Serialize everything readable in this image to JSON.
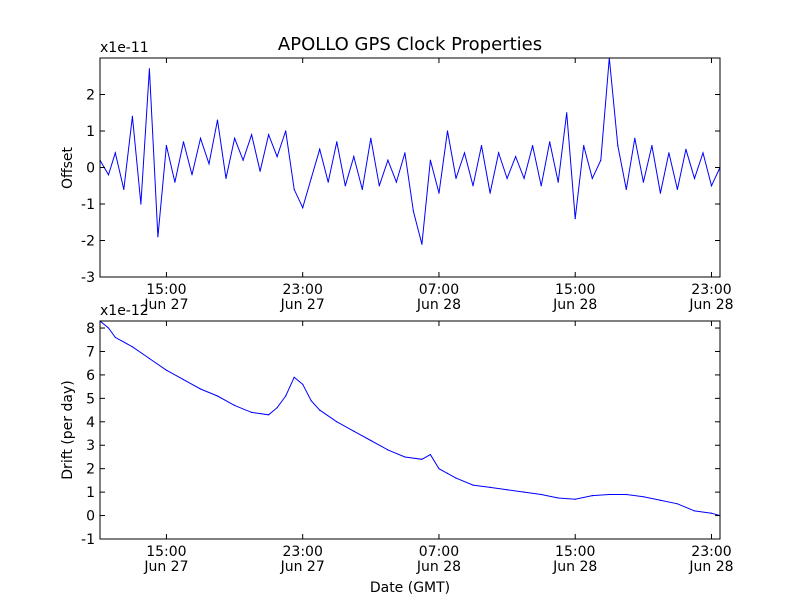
{
  "title": "APOLLO GPS Clock Properties",
  "colors": {
    "line": "#0000ff",
    "axes": "#000000",
    "background": "#ffffff"
  },
  "chart_data": [
    {
      "type": "line",
      "name": "offset-plot",
      "ylabel": "Offset",
      "multiplier_label": "x1e-11",
      "ylim": [
        -3,
        3
      ],
      "yticks": [
        -3,
        -2,
        -1,
        0,
        1,
        2
      ],
      "ytick_labels": [
        "-3",
        "-2",
        "-1",
        "0",
        "1",
        "2"
      ],
      "xlim_hours": [
        11.1,
        47.5
      ],
      "xticks_hours": [
        15,
        23,
        31,
        39,
        47
      ],
      "xtick_labels": [
        {
          "time": "15:00",
          "date": "Jun 27"
        },
        {
          "time": "23:00",
          "date": "Jun 27"
        },
        {
          "time": "07:00",
          "date": "Jun 28"
        },
        {
          "time": "15:00",
          "date": "Jun 28"
        },
        {
          "time": "23:00",
          "date": "Jun 28"
        }
      ],
      "series": [
        {
          "color": "#0000ff",
          "x_hours": [
            11.1,
            11.6,
            12.0,
            12.5,
            13.0,
            13.5,
            14.0,
            14.5,
            15.0,
            15.5,
            16.0,
            16.5,
            17.0,
            17.5,
            18.0,
            18.5,
            19.0,
            19.5,
            20.0,
            20.5,
            21.0,
            21.5,
            22.0,
            22.5,
            23.0,
            23.5,
            24.0,
            24.5,
            25.0,
            25.5,
            26.0,
            26.5,
            27.0,
            27.5,
            28.0,
            28.5,
            29.0,
            29.5,
            30.0,
            30.5,
            31.0,
            31.5,
            32.0,
            32.5,
            33.0,
            33.5,
            34.0,
            34.5,
            35.0,
            35.5,
            36.0,
            36.5,
            37.0,
            37.5,
            38.0,
            38.5,
            39.0,
            39.5,
            40.0,
            40.5,
            41.0,
            41.5,
            42.0,
            42.5,
            43.0,
            43.5,
            44.0,
            44.5,
            45.0,
            45.5,
            46.0,
            46.5,
            47.0,
            47.5
          ],
          "values": [
            0.2,
            -0.2,
            0.4,
            -0.6,
            1.4,
            -1.0,
            2.7,
            -1.9,
            0.6,
            -0.4,
            0.7,
            -0.2,
            0.8,
            0.1,
            1.3,
            -0.3,
            0.8,
            0.2,
            0.9,
            -0.1,
            0.9,
            0.3,
            1.0,
            -0.6,
            -1.1,
            -0.3,
            0.5,
            -0.4,
            0.7,
            -0.5,
            0.3,
            -0.6,
            0.8,
            -0.5,
            0.2,
            -0.4,
            0.4,
            -1.2,
            -2.1,
            0.2,
            -0.7,
            1.0,
            -0.3,
            0.4,
            -0.5,
            0.6,
            -0.7,
            0.4,
            -0.3,
            0.3,
            -0.3,
            0.6,
            -0.5,
            0.7,
            -0.4,
            1.5,
            -1.4,
            0.6,
            -0.3,
            0.2,
            3.0,
            0.6,
            -0.6,
            0.8,
            -0.4,
            0.6,
            -0.7,
            0.4,
            -0.6,
            0.5,
            -0.3,
            0.4,
            -0.5,
            0.0
          ]
        }
      ]
    },
    {
      "type": "line",
      "name": "drift-plot",
      "ylabel": "Drift (per day)",
      "xlabel": "Date (GMT)",
      "multiplier_label": "x1e-12",
      "ylim": [
        -1,
        8.3
      ],
      "yticks": [
        -1,
        0,
        1,
        2,
        3,
        4,
        5,
        6,
        7,
        8
      ],
      "ytick_labels": [
        "-1",
        "0",
        "1",
        "2",
        "3",
        "4",
        "5",
        "6",
        "7",
        "8"
      ],
      "xlim_hours": [
        11.1,
        47.5
      ],
      "xticks_hours": [
        15,
        23,
        31,
        39,
        47
      ],
      "xtick_labels": [
        {
          "time": "15:00",
          "date": "Jun 27"
        },
        {
          "time": "23:00",
          "date": "Jun 27"
        },
        {
          "time": "07:00",
          "date": "Jun 28"
        },
        {
          "time": "15:00",
          "date": "Jun 28"
        },
        {
          "time": "23:00",
          "date": "Jun 28"
        }
      ],
      "series": [
        {
          "color": "#0000ff",
          "x_hours": [
            11.1,
            11.6,
            12.0,
            13.0,
            14.0,
            15.0,
            16.0,
            17.0,
            18.0,
            19.0,
            20.0,
            21.0,
            21.5,
            22.0,
            22.5,
            23.0,
            23.5,
            24.0,
            25.0,
            26.0,
            27.0,
            28.0,
            29.0,
            30.0,
            30.5,
            31.0,
            31.5,
            32.0,
            33.0,
            34.0,
            35.0,
            36.0,
            37.0,
            38.0,
            39.0,
            40.0,
            41.0,
            42.0,
            43.0,
            44.0,
            45.0,
            46.0,
            47.0,
            47.5
          ],
          "values": [
            8.3,
            8.0,
            7.6,
            7.2,
            6.7,
            6.2,
            5.8,
            5.4,
            5.1,
            4.7,
            4.4,
            4.3,
            4.6,
            5.1,
            5.9,
            5.6,
            4.9,
            4.5,
            4.0,
            3.6,
            3.2,
            2.8,
            2.5,
            2.4,
            2.6,
            2.0,
            1.8,
            1.6,
            1.3,
            1.2,
            1.1,
            1.0,
            0.9,
            0.75,
            0.7,
            0.85,
            0.9,
            0.9,
            0.8,
            0.65,
            0.5,
            0.2,
            0.1,
            0.0
          ]
        }
      ]
    }
  ]
}
